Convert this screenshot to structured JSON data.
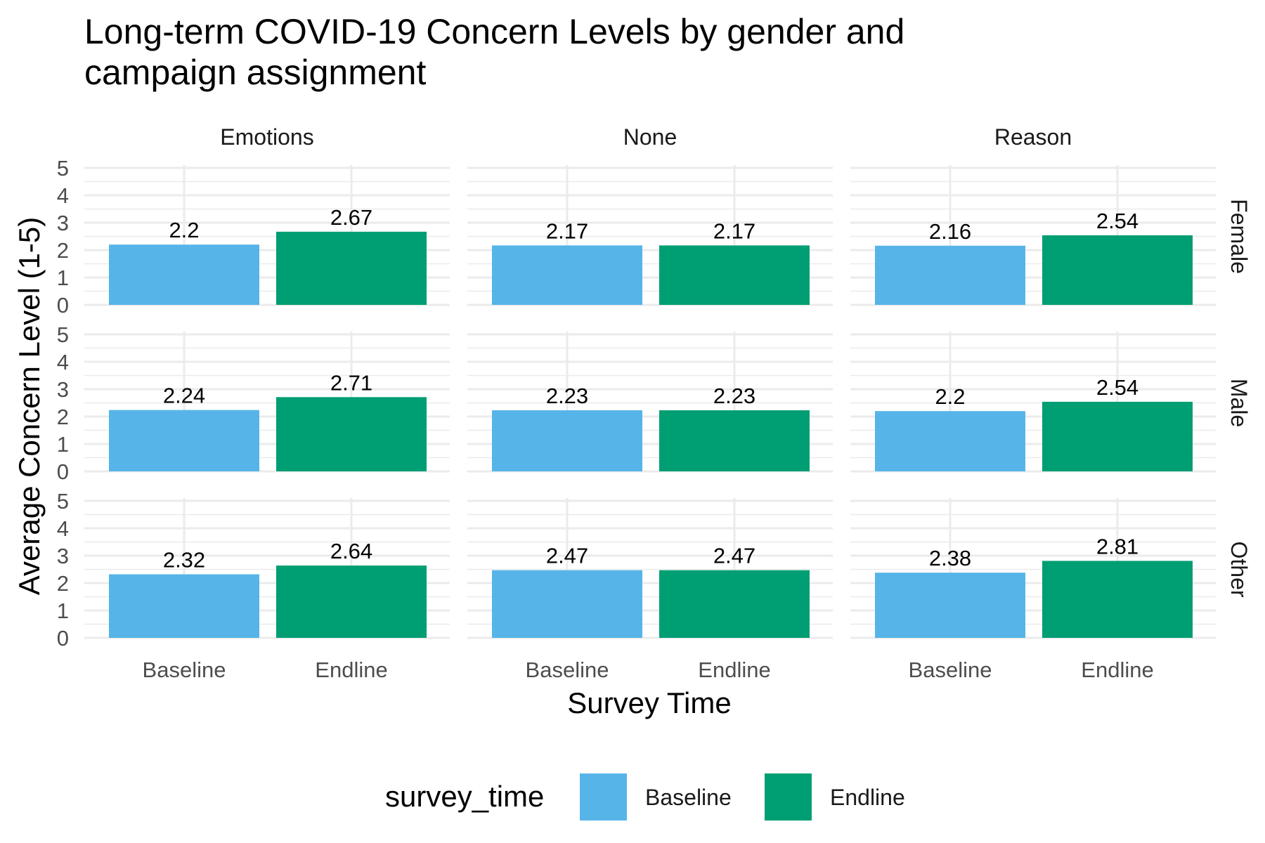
{
  "chart_data": {
    "type": "bar",
    "title_lines": [
      "Long-term COVID-19 Concern Levels by gender and",
      "campaign assignment"
    ],
    "xlabel": "Survey Time",
    "ylabel": "Average Concern Level (1-5)",
    "categories": [
      "Baseline",
      "Endline"
    ],
    "column_facets": [
      "Emotions",
      "None",
      "Reason"
    ],
    "row_facets": [
      "Female",
      "Male",
      "Other"
    ],
    "ylim": [
      0,
      5
    ],
    "yticks": [
      "0",
      "1",
      "2",
      "3",
      "4",
      "5"
    ],
    "grid": true,
    "legend": {
      "title": "survey_time",
      "position": "bottom",
      "entries": [
        {
          "label": "Baseline",
          "color": "#56B4E9"
        },
        {
          "label": "Endline",
          "color": "#009E73"
        }
      ]
    },
    "series": [
      {
        "values": {
          "Female": {
            "Emotions": 2.2,
            "None": 2.17,
            "Reason": 2.16
          },
          "Male": {
            "Emotions": 2.24,
            "None": 2.23,
            "Reason": 2.2
          },
          "Other": {
            "Emotions": 2.32,
            "None": 2.47,
            "Reason": 2.38
          }
        },
        "labels": {
          "Female": {
            "Emotions": "2.2",
            "None": "2.17",
            "Reason": "2.16"
          },
          "Male": {
            "Emotions": "2.24",
            "None": "2.23",
            "Reason": "2.2"
          },
          "Other": {
            "Emotions": "2.32",
            "None": "2.47",
            "Reason": "2.38"
          }
        }
      },
      {
        "values": {
          "Female": {
            "Emotions": 2.67,
            "None": 2.17,
            "Reason": 2.54
          },
          "Male": {
            "Emotions": 2.71,
            "None": 2.23,
            "Reason": 2.54
          },
          "Other": {
            "Emotions": 2.64,
            "None": 2.47,
            "Reason": 2.81
          }
        },
        "labels": {
          "Female": {
            "Emotions": "2.67",
            "None": "2.17",
            "Reason": "2.54"
          },
          "Male": {
            "Emotions": "2.71",
            "None": "2.23",
            "Reason": "2.54"
          },
          "Other": {
            "Emotions": "2.64",
            "None": "2.47",
            "Reason": "2.81"
          }
        }
      }
    ]
  }
}
